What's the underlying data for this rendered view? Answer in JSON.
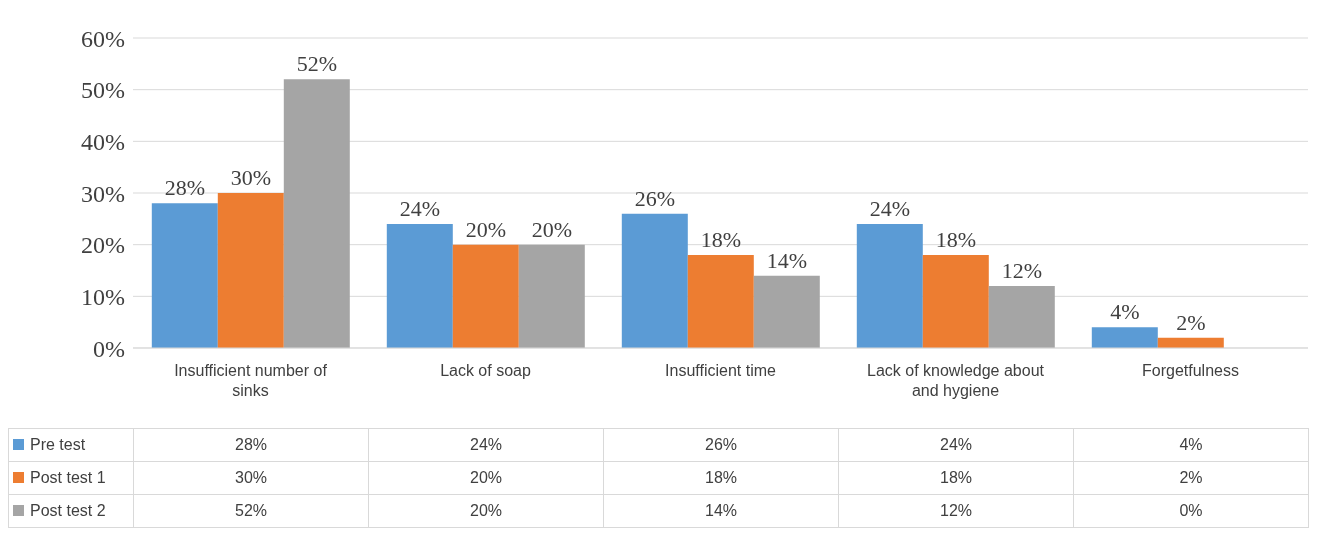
{
  "chart_data": {
    "type": "bar",
    "categories": [
      "Insufficient number of sinks",
      "Lack of soap",
      "Insufficient time",
      "Lack of knowledge about and hygiene",
      "Forgetfulness"
    ],
    "series": [
      {
        "name": "Pre test",
        "color": "#5b9bd5",
        "values": [
          28,
          24,
          26,
          24,
          4
        ],
        "value_labels": [
          "28%",
          "24%",
          "26%",
          "24%",
          "4%"
        ]
      },
      {
        "name": "Post test 1",
        "color": "#ed7d31",
        "values": [
          30,
          20,
          18,
          18,
          2
        ],
        "value_labels": [
          "30%",
          "20%",
          "18%",
          "18%",
          "2%"
        ]
      },
      {
        "name": "Post test 2",
        "color": "#a5a5a5",
        "values": [
          52,
          20,
          14,
          12,
          0
        ],
        "value_labels": [
          "52%",
          "20%",
          "14%",
          "12%",
          "0%"
        ]
      }
    ],
    "ylim": [
      0,
      60
    ],
    "yticks": [
      {
        "value": 0,
        "label": "0%"
      },
      {
        "value": 10,
        "label": "10%"
      },
      {
        "value": 20,
        "label": "20%"
      },
      {
        "value": 30,
        "label": "30%"
      },
      {
        "value": 40,
        "label": "40%"
      },
      {
        "value": 50,
        "label": "50%"
      },
      {
        "value": 60,
        "label": "60%"
      }
    ],
    "grid": "y",
    "legend": "bottom"
  }
}
